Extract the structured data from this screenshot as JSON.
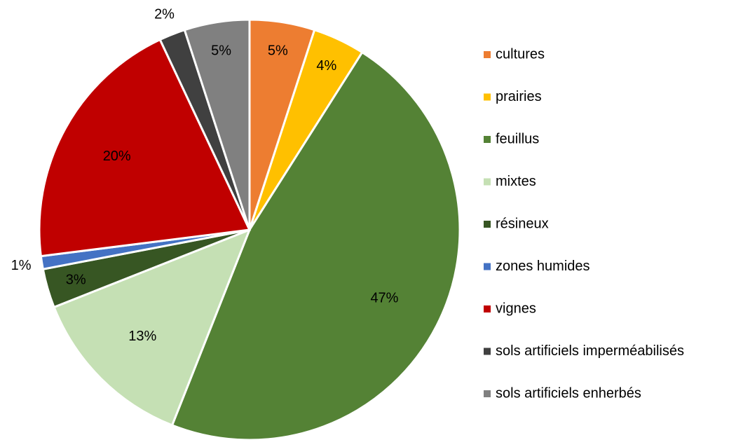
{
  "chart_data": {
    "type": "pie",
    "categories": [
      "cultures",
      "prairies",
      "feuillus",
      "mixtes",
      "résineux",
      "zones humides",
      "vignes",
      "sols artificiels imperméabilisés",
      "sols artificiels enherbés"
    ],
    "values": [
      5,
      4,
      47,
      13,
      3,
      1,
      20,
      2,
      5
    ],
    "value_labels": [
      "5%",
      "4%",
      "47%",
      "13%",
      "3%",
      "1%",
      "20%",
      "2%",
      "5%"
    ],
    "colors": [
      "#ed7d31",
      "#ffc000",
      "#548235",
      "#c5e0b4",
      "#375623",
      "#4472c4",
      "#c00000",
      "#404040",
      "#808080"
    ],
    "legend": "right"
  }
}
